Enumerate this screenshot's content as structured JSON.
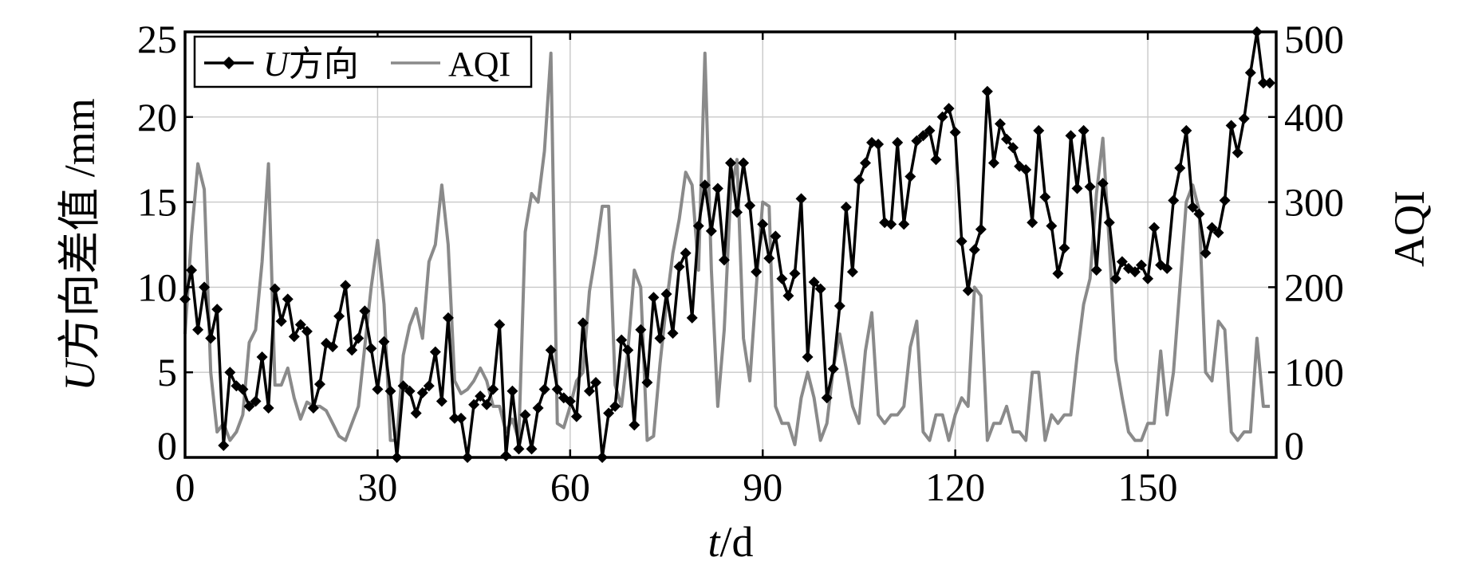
{
  "chart_data": {
    "type": "line",
    "xlabel": {
      "italic": "t",
      "rest": "/d"
    },
    "ylabel_left": {
      "italic": "U",
      "rest": "方向差值 /mm"
    },
    "ylabel_right": "AQI",
    "xlim": [
      0,
      170
    ],
    "ylim_left": [
      0,
      25
    ],
    "ylim_right": [
      0,
      500
    ],
    "xticks": [
      "0",
      "30",
      "60",
      "90",
      "120",
      "150"
    ],
    "yticks_left": [
      "0",
      "5",
      "10",
      "15",
      "20",
      "25"
    ],
    "yticks_right": [
      "0",
      "100",
      "200",
      "300",
      "400",
      "500"
    ],
    "grid": true,
    "legend_position": "top-left",
    "series": [
      {
        "name": {
          "italic": "U",
          "rest": "方向"
        },
        "axis": "left",
        "color": "#000000",
        "marker": "diamond",
        "x": [
          0,
          1,
          2,
          3,
          4,
          5,
          6,
          7,
          8,
          9,
          10,
          11,
          12,
          13,
          14,
          15,
          16,
          17,
          18,
          19,
          20,
          21,
          22,
          23,
          24,
          25,
          26,
          27,
          28,
          29,
          30,
          31,
          32,
          33,
          34,
          35,
          36,
          37,
          38,
          39,
          40,
          41,
          42,
          43,
          44,
          45,
          46,
          47,
          48,
          49,
          50,
          51,
          52,
          53,
          54,
          55,
          56,
          57,
          58,
          59,
          60,
          61,
          62,
          63,
          64,
          65,
          66,
          67,
          68,
          69,
          70,
          71,
          72,
          73,
          74,
          75,
          76,
          77,
          78,
          79,
          80,
          81,
          82,
          83,
          84,
          85,
          86,
          87,
          88,
          89,
          90,
          91,
          92,
          93,
          94,
          95,
          96,
          97,
          98,
          99,
          100,
          101,
          102,
          103,
          104,
          105,
          106,
          107,
          108,
          109,
          110,
          111,
          112,
          113,
          114,
          115,
          116,
          117,
          118,
          119,
          120,
          121,
          122,
          123,
          124,
          125,
          126,
          127,
          128,
          129,
          130,
          131,
          132,
          133,
          134,
          135,
          136,
          137,
          138,
          139,
          140,
          141,
          142,
          143,
          144,
          145,
          146,
          147,
          148,
          149,
          150,
          151,
          152,
          153,
          154,
          155,
          156,
          157,
          158,
          159,
          160,
          161,
          162,
          163,
          164,
          165,
          166,
          167,
          168,
          169
        ],
        "y": [
          9.3,
          11.0,
          7.5,
          10.0,
          7.0,
          8.7,
          0.7,
          5.0,
          4.2,
          4.0,
          3.0,
          3.3,
          5.9,
          2.9,
          9.9,
          8.0,
          9.3,
          7.1,
          7.8,
          7.4,
          2.9,
          4.3,
          6.7,
          6.5,
          8.3,
          10.1,
          6.3,
          7.0,
          8.6,
          6.4,
          4.0,
          6.8,
          3.9,
          0.0,
          4.2,
          3.9,
          2.6,
          3.8,
          4.2,
          6.2,
          3.3,
          8.2,
          2.3,
          2.3,
          0.0,
          3.1,
          3.6,
          3.1,
          4.0,
          7.8,
          0.1,
          3.9,
          0.5,
          2.5,
          0.5,
          2.9,
          4.0,
          6.3,
          4.0,
          3.5,
          3.3,
          2.4,
          7.9,
          3.9,
          4.4,
          0.0,
          2.6,
          3.0,
          6.9,
          6.3,
          1.9,
          7.5,
          4.4,
          9.4,
          7.0,
          9.6,
          7.3,
          11.2,
          12.0,
          8.2,
          13.6,
          16.0,
          13.3,
          15.8,
          11.6,
          17.3,
          14.4,
          17.3,
          14.8,
          10.9,
          13.7,
          11.7,
          13.0,
          10.5,
          9.5,
          10.8,
          15.2,
          5.9,
          10.3,
          9.9,
          3.5,
          5.2,
          8.9,
          14.7,
          10.9,
          16.3,
          17.3,
          18.5,
          18.4,
          13.8,
          13.7,
          18.5,
          13.7,
          16.5,
          18.6,
          18.9,
          19.2,
          17.5,
          20.0,
          20.5,
          19.1,
          12.7,
          9.8,
          12.2,
          13.4,
          21.5,
          17.3,
          19.6,
          18.7,
          18.2,
          17.1,
          16.9,
          13.8,
          19.2,
          15.3,
          13.6,
          10.8,
          12.3,
          18.9,
          15.8,
          19.2,
          15.9,
          11.0,
          16.1,
          13.8,
          10.5,
          11.5,
          11.1,
          10.9,
          11.3,
          10.5,
          13.5,
          11.3,
          11.1,
          15.1,
          17.0,
          19.2,
          14.7,
          14.3,
          12.0,
          13.5,
          13.2,
          15.1,
          19.5,
          17.9,
          19.9,
          22.6,
          25.0,
          22.0,
          22.0
        ]
      },
      {
        "name": "AQI",
        "axis": "right",
        "color": "#8a8a8a",
        "marker": "none",
        "x": [
          0,
          1,
          2,
          3,
          4,
          5,
          6,
          7,
          8,
          9,
          10,
          11,
          12,
          13,
          14,
          15,
          16,
          17,
          18,
          19,
          20,
          21,
          22,
          23,
          24,
          25,
          26,
          27,
          28,
          29,
          30,
          31,
          32,
          33,
          34,
          35,
          36,
          37,
          38,
          39,
          40,
          41,
          42,
          43,
          44,
          45,
          46,
          47,
          48,
          49,
          50,
          51,
          52,
          53,
          54,
          55,
          56,
          57,
          58,
          59,
          60,
          61,
          62,
          63,
          64,
          65,
          66,
          67,
          68,
          69,
          70,
          71,
          72,
          73,
          74,
          75,
          76,
          77,
          78,
          79,
          80,
          81,
          82,
          83,
          84,
          85,
          86,
          87,
          88,
          89,
          90,
          91,
          92,
          93,
          94,
          95,
          96,
          97,
          98,
          99,
          100,
          101,
          102,
          103,
          104,
          105,
          106,
          107,
          108,
          109,
          110,
          111,
          112,
          113,
          114,
          115,
          116,
          117,
          118,
          119,
          120,
          121,
          122,
          123,
          124,
          125,
          126,
          127,
          128,
          129,
          130,
          131,
          132,
          133,
          134,
          135,
          136,
          137,
          138,
          139,
          140,
          141,
          142,
          143,
          144,
          145,
          146,
          147,
          148,
          149,
          150,
          151,
          152,
          153,
          154,
          155,
          156,
          157,
          158,
          159,
          160,
          161,
          162,
          163,
          164,
          165,
          166,
          167,
          168,
          169
        ],
        "y": [
          145,
          260,
          345,
          315,
          100,
          30,
          40,
          20,
          30,
          50,
          135,
          150,
          230,
          345,
          85,
          85,
          105,
          70,
          45,
          65,
          60,
          60,
          55,
          40,
          25,
          20,
          40,
          60,
          130,
          200,
          255,
          180,
          20,
          20,
          120,
          155,
          175,
          140,
          230,
          250,
          320,
          250,
          90,
          75,
          80,
          90,
          105,
          90,
          60,
          60,
          30,
          45,
          20,
          265,
          310,
          300,
          360,
          475,
          40,
          35,
          60,
          90,
          100,
          195,
          240,
          295,
          295,
          85,
          60,
          125,
          220,
          200,
          20,
          25,
          110,
          180,
          240,
          280,
          335,
          320,
          220,
          475,
          220,
          60,
          150,
          310,
          350,
          140,
          90,
          200,
          300,
          295,
          60,
          40,
          40,
          15,
          70,
          100,
          70,
          20,
          40,
          105,
          145,
          105,
          60,
          40,
          125,
          170,
          50,
          40,
          50,
          50,
          60,
          130,
          160,
          30,
          20,
          50,
          50,
          20,
          50,
          70,
          60,
          200,
          190,
          20,
          40,
          40,
          60,
          30,
          30,
          20,
          100,
          100,
          20,
          50,
          40,
          50,
          50,
          120,
          180,
          210,
          310,
          375,
          250,
          115,
          70,
          30,
          20,
          20,
          40,
          40,
          125,
          50,
          100,
          200,
          300,
          320,
          290,
          100,
          90,
          160,
          150,
          30,
          20,
          30,
          30,
          140,
          60,
          60
        ]
      }
    ]
  }
}
